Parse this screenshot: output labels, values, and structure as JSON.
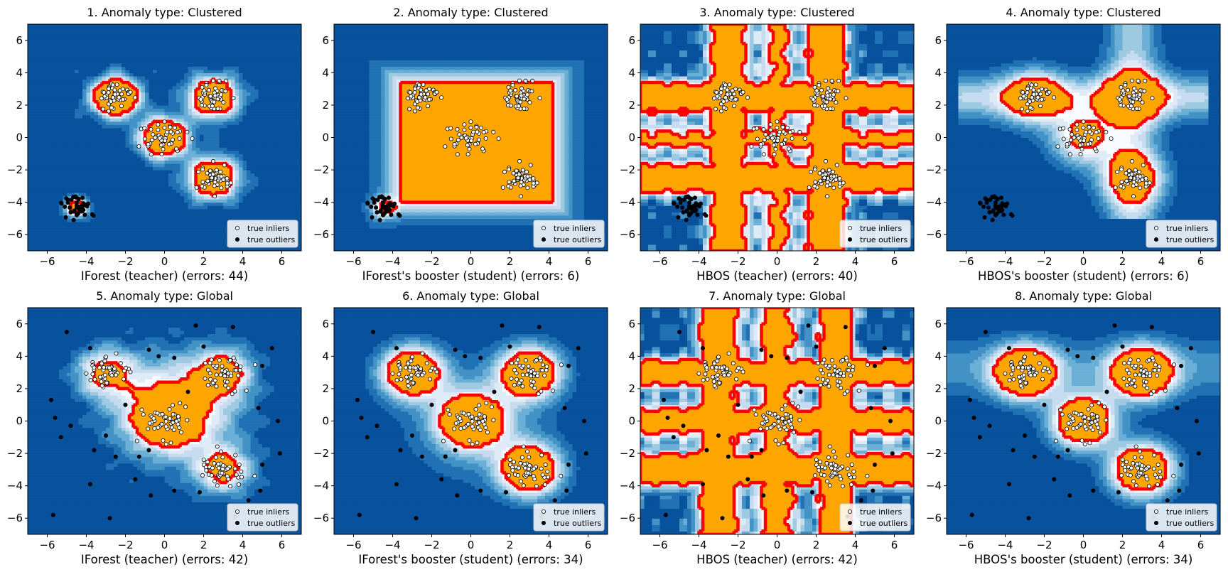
{
  "colors": {
    "blues": [
      "#f7fbff",
      "#deebf7",
      "#c6dbef",
      "#9ecae1",
      "#6baed6",
      "#4292c6",
      "#2171b5",
      "#08519c"
    ],
    "inlier_region": "#ffa500",
    "boundary": "#ff0000",
    "inlier_marker_fill": "#ffffff",
    "outlier_marker_fill": "#000000"
  },
  "legend_labels": {
    "inliers": "true inliers",
    "outliers": "true outliers"
  },
  "axis": {
    "xlim": [
      -7,
      7
    ],
    "ylim": [
      -7,
      7
    ],
    "ticks": [
      -6,
      -4,
      -2,
      0,
      2,
      4,
      6
    ]
  },
  "chart_data": [
    {
      "type": "scatter",
      "title": "1. Anomaly type: Clustered",
      "xlabel": "IForest (teacher) (errors: 44)",
      "ylabel": "",
      "anomaly": "clustered",
      "model": "iforest",
      "inlier_clusters": [
        [
          -2.5,
          2.5
        ],
        [
          2.5,
          2.5
        ],
        [
          0,
          0
        ],
        [
          2.5,
          -2.5
        ]
      ],
      "outlier_cluster": [
        -4.5,
        -4.3
      ],
      "decision_region": "iforest_clusters"
    },
    {
      "type": "scatter",
      "title": "2. Anomaly type: Clustered",
      "xlabel": "IForest's booster (student) (errors: 6)",
      "ylabel": "",
      "anomaly": "clustered",
      "model": "booster",
      "inlier_clusters": [
        [
          -2.5,
          2.5
        ],
        [
          2.5,
          2.5
        ],
        [
          0,
          0
        ],
        [
          2.5,
          -2.5
        ]
      ],
      "outlier_cluster": [
        -4.5,
        -4.3
      ],
      "decision_region": "iforest_booster_clustered"
    },
    {
      "type": "scatter",
      "title": "3. Anomaly type: Clustered",
      "xlabel": "HBOS (teacher) (errors: 40)",
      "ylabel": "",
      "anomaly": "clustered",
      "model": "hbos",
      "inlier_clusters": [
        [
          -2.5,
          2.5
        ],
        [
          2.5,
          2.5
        ],
        [
          0,
          0
        ],
        [
          2.5,
          -2.5
        ]
      ],
      "outlier_cluster": [
        -4.5,
        -4.3
      ],
      "decision_region": "hbos_cross_clustered"
    },
    {
      "type": "scatter",
      "title": "4. Anomaly type: Clustered",
      "xlabel": "HBOS's booster (student) (errors: 6)",
      "ylabel": "",
      "anomaly": "clustered",
      "model": "booster",
      "inlier_clusters": [
        [
          -2.5,
          2.5
        ],
        [
          2.5,
          2.5
        ],
        [
          0,
          0
        ],
        [
          2.5,
          -2.5
        ]
      ],
      "outlier_cluster": [
        -4.5,
        -4.3
      ],
      "decision_region": "hbos_booster_clustered"
    },
    {
      "type": "scatter",
      "title": "5. Anomaly type: Global",
      "xlabel": "IForest (teacher) (errors: 42)",
      "ylabel": "",
      "anomaly": "global",
      "model": "iforest",
      "inlier_clusters": [
        [
          -3,
          3
        ],
        [
          3,
          3
        ],
        [
          0,
          0
        ],
        [
          3,
          -3
        ]
      ],
      "decision_region": "iforest_global"
    },
    {
      "type": "scatter",
      "title": "6. Anomaly type: Global",
      "xlabel": "IForest's booster (student) (errors: 34)",
      "ylabel": "",
      "anomaly": "global",
      "model": "booster",
      "inlier_clusters": [
        [
          -3,
          3
        ],
        [
          3,
          3
        ],
        [
          0,
          0
        ],
        [
          3,
          -3
        ]
      ],
      "decision_region": "iforest_booster_global"
    },
    {
      "type": "scatter",
      "title": "7. Anomaly type: Global",
      "xlabel": "HBOS (teacher) (errors: 42)",
      "ylabel": "",
      "anomaly": "global",
      "model": "hbos",
      "inlier_clusters": [
        [
          -3,
          3
        ],
        [
          3,
          3
        ],
        [
          0,
          0
        ],
        [
          3,
          -3
        ]
      ],
      "decision_region": "hbos_cross_global"
    },
    {
      "type": "scatter",
      "title": "8. Anomaly type: Global",
      "xlabel": "HBOS's booster (student) (errors: 34)",
      "ylabel": "",
      "anomaly": "global",
      "model": "booster",
      "inlier_clusters": [
        [
          -3,
          3
        ],
        [
          3,
          3
        ],
        [
          0,
          0
        ],
        [
          3,
          -3
        ]
      ],
      "decision_region": "hbos_booster_global"
    }
  ],
  "global_outliers": [
    [
      -5.7,
      -5.8
    ],
    [
      -2.8,
      -6.0
    ],
    [
      3.6,
      -5.9
    ],
    [
      -3.8,
      4.5
    ],
    [
      3.5,
      5.8
    ],
    [
      1.6,
      5.9
    ],
    [
      -5.0,
      5.5
    ],
    [
      5.5,
      4.5
    ],
    [
      5.0,
      3.4
    ],
    [
      5.8,
      0.0
    ],
    [
      5.9,
      -2.0
    ],
    [
      -5.8,
      1.3
    ],
    [
      -5.3,
      -1.0
    ],
    [
      -4.8,
      -0.3
    ],
    [
      -3.6,
      -1.8
    ],
    [
      -2.5,
      -2.2
    ],
    [
      -1.5,
      -3.6
    ],
    [
      0.5,
      -4.3
    ],
    [
      -0.7,
      -4.6
    ],
    [
      1.8,
      -4.4
    ],
    [
      -3.8,
      -3.9
    ],
    [
      -0.8,
      4.4
    ],
    [
      2.0,
      4.6
    ],
    [
      -5.6,
      0.2
    ],
    [
      4.3,
      -4.9
    ],
    [
      4.9,
      -4.3
    ],
    [
      4.8,
      0.8
    ],
    [
      -0.3,
      4.0
    ],
    [
      5.0,
      -2.7
    ],
    [
      -1.3,
      -2.2
    ],
    [
      0.5,
      3.9
    ],
    [
      -2.0,
      1.0
    ],
    [
      -0.8,
      -1.8
    ],
    [
      -3.0,
      -0.9
    ],
    [
      1.2,
      1.8
    ]
  ]
}
